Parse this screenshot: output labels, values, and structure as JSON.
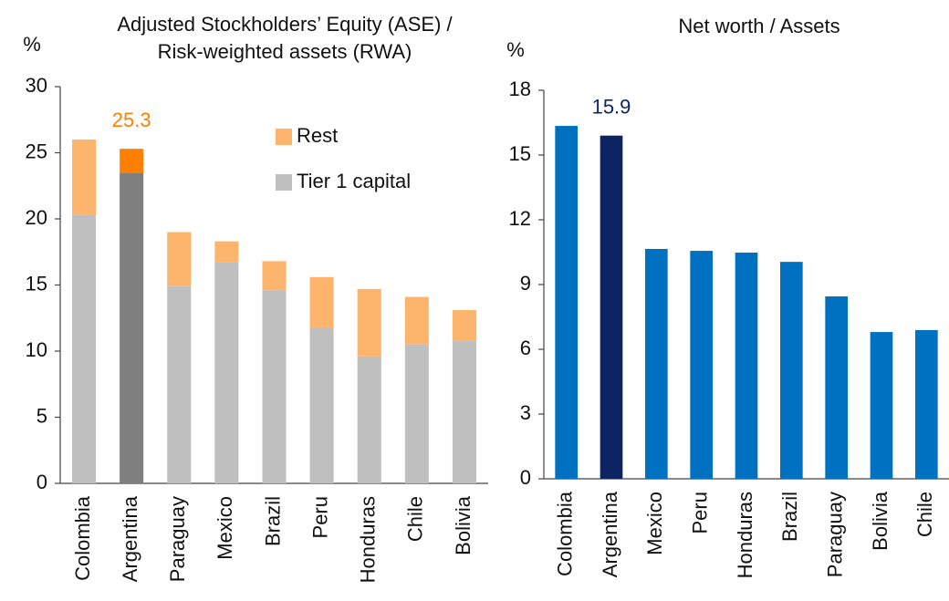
{
  "chart_data": [
    {
      "type": "stacked_bar",
      "title": [
        "Adjusted Stockholders’ Equity (ASE) /",
        "Risk-weighted assets (RWA)"
      ],
      "ylabel": "%",
      "categories": [
        "Colombia",
        "Argentina",
        "Paraguay",
        "Mexico",
        "Brazil",
        "Peru",
        "Honduras",
        "Chile",
        "Bolivia"
      ],
      "series": [
        {
          "name": "Tier 1 capital",
          "color": "#bfbfbf",
          "highlight_color": "#7f7f7f",
          "values": [
            20.3,
            23.5,
            14.9,
            16.7,
            14.6,
            11.8,
            9.6,
            10.5,
            10.8
          ]
        },
        {
          "name": "Rest",
          "color": "#fdb46c",
          "highlight_color": "#fd8003",
          "values": [
            5.7,
            1.8,
            4.1,
            1.6,
            2.2,
            3.8,
            5.1,
            3.6,
            2.3
          ]
        }
      ],
      "highlight": "Argentina",
      "annotation": {
        "category": "Argentina",
        "value": 25.3,
        "color": "#fd8003"
      },
      "ylim": [
        0,
        30
      ],
      "yticks": [
        0,
        5,
        10,
        15,
        20,
        25,
        30
      ]
    },
    {
      "type": "bar",
      "title": [
        "Net worth / Assets"
      ],
      "ylabel": "%",
      "categories": [
        "Colombia",
        "Argentina",
        "Mexico",
        "Peru",
        "Honduras",
        "Brazil",
        "Paraguay",
        "Bolivia",
        "Chile"
      ],
      "values": [
        16.35,
        15.9,
        10.65,
        10.56,
        10.48,
        10.05,
        8.45,
        6.8,
        6.89
      ],
      "color": "#0070c0",
      "highlight_color": "#0c2461",
      "highlight": "Argentina",
      "annotation": {
        "category": "Argentina",
        "value": 15.9,
        "color": "#0c2461"
      },
      "ylim": [
        0,
        18
      ],
      "yticks": [
        0,
        3,
        6,
        9,
        12,
        15,
        18
      ]
    }
  ]
}
